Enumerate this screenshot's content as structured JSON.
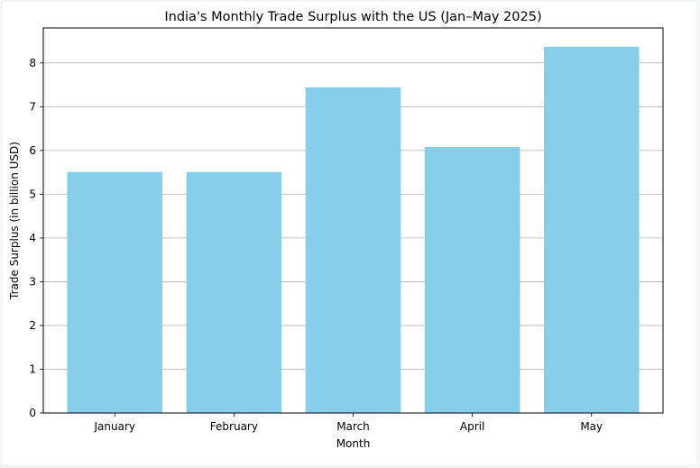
{
  "chart_data": {
    "type": "bar",
    "title": "India's Monthly Trade Surplus with the US (Jan–May 2025)",
    "xlabel": "Month",
    "ylabel": "Trade Surplus (in billion USD)",
    "categories": [
      "January",
      "February",
      "March",
      "April",
      "May"
    ],
    "values": [
      5.51,
      5.51,
      7.44,
      6.08,
      8.37
    ],
    "ylim": [
      0,
      8.8
    ],
    "yticks": [
      0,
      1,
      2,
      3,
      4,
      5,
      6,
      7,
      8
    ],
    "grid": "y",
    "bar_color": "#87ceeb"
  }
}
